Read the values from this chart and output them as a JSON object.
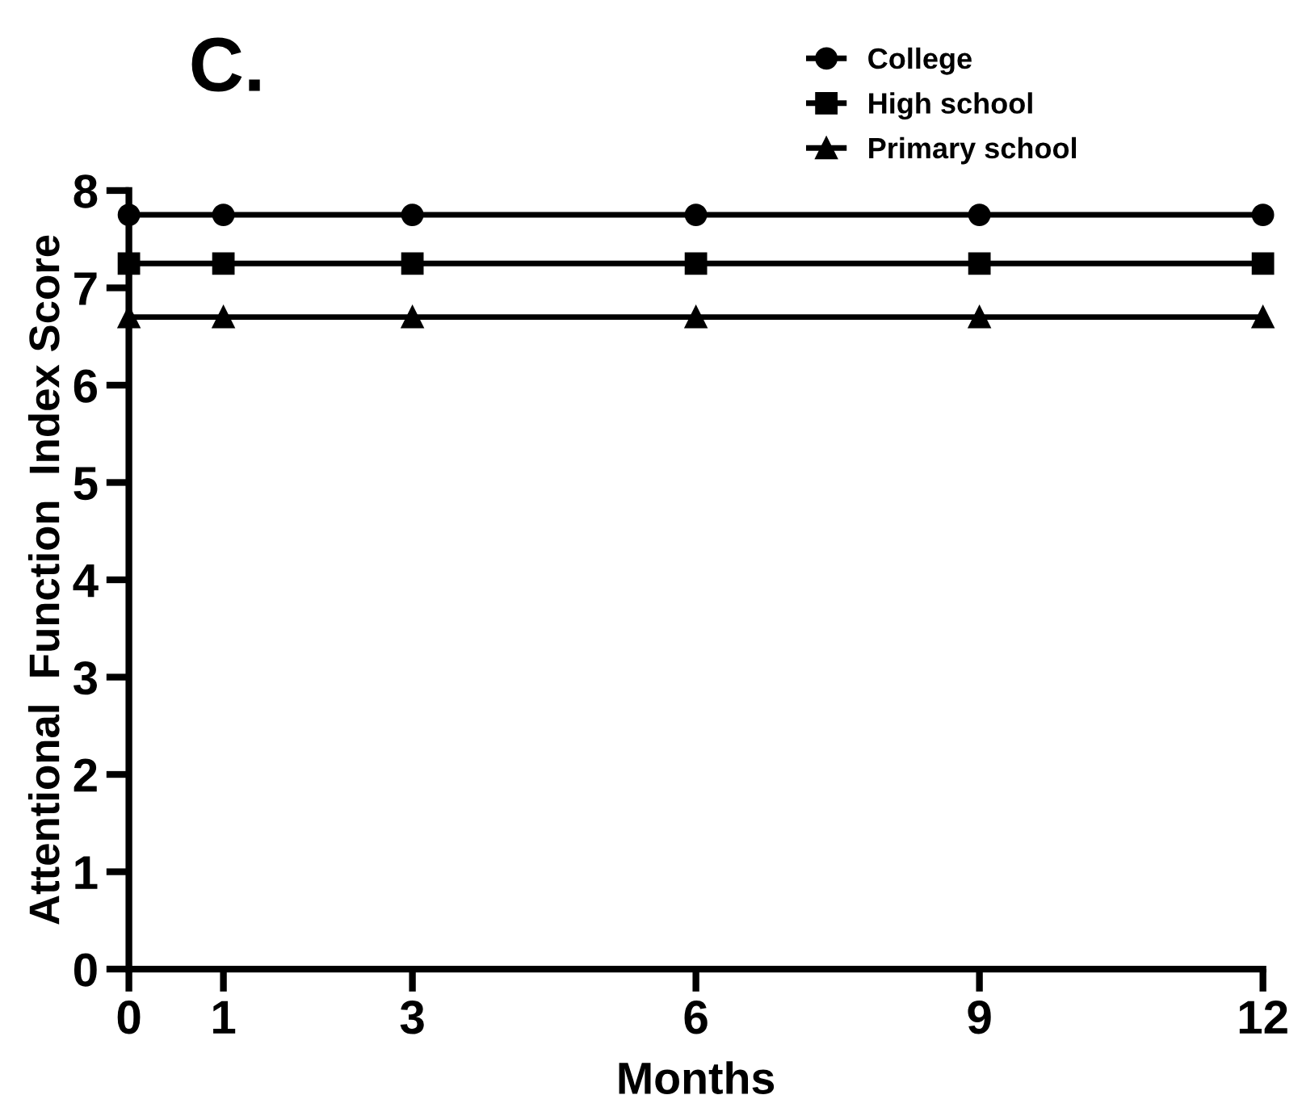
{
  "chart_data": {
    "type": "line",
    "title": "C.",
    "xlabel": "Months",
    "ylabel": "Attentional  Function  Index Score",
    "x": [
      0,
      1,
      3,
      6,
      9,
      12
    ],
    "series": [
      {
        "name": "College",
        "color": "#000000",
        "marker": "circle",
        "values": [
          7.75,
          7.75,
          7.75,
          7.75,
          7.75,
          7.75
        ]
      },
      {
        "name": "High school",
        "color": "#000000",
        "marker": "square",
        "values": [
          7.25,
          7.25,
          7.25,
          7.25,
          7.25,
          7.25
        ]
      },
      {
        "name": "Primary school",
        "color": "#000000",
        "marker": "triangle",
        "values": [
          6.7,
          6.7,
          6.7,
          6.7,
          6.7,
          6.7
        ]
      }
    ],
    "xlim": [
      0,
      12
    ],
    "xticks": [
      0,
      1,
      3,
      6,
      9,
      12
    ],
    "ylim": [
      0,
      8
    ],
    "yticks": [
      0,
      1,
      2,
      3,
      4,
      5,
      6,
      7,
      8
    ],
    "grid": false,
    "legend": "top right",
    "line_style": "solid"
  }
}
